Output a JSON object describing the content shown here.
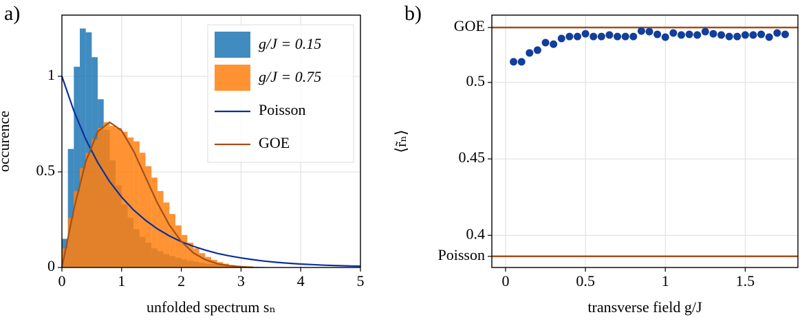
{
  "chart_data": [
    {
      "type": "histogram",
      "panel_label": "a)",
      "xlabel": "unfolded spectrum sₙ",
      "ylabel": "occurence",
      "xlim": [
        0,
        5
      ],
      "ylim": [
        0,
        1.32
      ],
      "xticks": [
        0,
        1,
        2,
        3,
        4,
        5
      ],
      "yticks": [
        0,
        0.5,
        1
      ],
      "grid": true,
      "legend": "upper right",
      "bins": [
        0,
        0.1,
        0.2,
        0.3,
        0.4,
        0.5,
        0.6,
        0.7,
        0.8,
        0.9,
        1.0,
        1.1,
        1.2,
        1.3,
        1.4,
        1.5,
        1.6,
        1.7,
        1.8,
        1.9,
        2.0,
        2.1,
        2.2,
        2.3,
        2.4,
        2.5,
        2.6,
        2.7,
        2.8,
        2.9,
        3.0,
        3.1,
        3.2,
        3.3,
        3.4,
        3.5
      ],
      "series": [
        {
          "name": "g/J = 0.15",
          "color": "#1f77b4",
          "values": [
            0.15,
            0.62,
            1.05,
            1.25,
            1.23,
            1.1,
            0.88,
            0.72,
            0.56,
            0.43,
            0.33,
            0.26,
            0.2,
            0.16,
            0.13,
            0.1,
            0.085,
            0.07,
            0.06,
            0.05,
            0.042,
            0.035,
            0.03,
            0.025,
            0.02,
            0.018,
            0.015,
            0.012,
            0.01,
            0.008,
            0.006,
            0.005,
            0.004,
            0.003,
            0.002
          ]
        },
        {
          "name": "g/J = 0.75",
          "color": "#ff7f0e",
          "values": [
            0.1,
            0.26,
            0.4,
            0.52,
            0.6,
            0.67,
            0.73,
            0.76,
            0.74,
            0.73,
            0.71,
            0.68,
            0.66,
            0.6,
            0.53,
            0.47,
            0.4,
            0.34,
            0.28,
            0.22,
            0.17,
            0.13,
            0.1,
            0.075,
            0.055,
            0.04,
            0.028,
            0.02,
            0.013,
            0.008,
            0.005,
            0.003,
            0.002,
            0.001,
            0.001
          ]
        }
      ],
      "lines": [
        {
          "name": "Poisson",
          "color": "#0a2f9a",
          "x": [
            0,
            0.2,
            0.4,
            0.6,
            0.8,
            1.0,
            1.2,
            1.4,
            1.6,
            1.8,
            2.0,
            2.2,
            2.4,
            2.6,
            2.8,
            3.0,
            3.2,
            3.4,
            3.6,
            3.8,
            4.0,
            4.2,
            4.4,
            4.6,
            4.8,
            5.0
          ],
          "values": [
            1,
            0.819,
            0.67,
            0.549,
            0.449,
            0.368,
            0.301,
            0.247,
            0.202,
            0.165,
            0.135,
            0.111,
            0.091,
            0.074,
            0.061,
            0.05,
            0.041,
            0.033,
            0.027,
            0.022,
            0.018,
            0.015,
            0.012,
            0.01,
            0.008,
            0.007
          ]
        },
        {
          "name": "GOE",
          "color": "#a0501a",
          "x": [
            0,
            0.2,
            0.4,
            0.6,
            0.8,
            1.0,
            1.2,
            1.4,
            1.6,
            1.8,
            2.0,
            2.2,
            2.4,
            2.6,
            2.8,
            3.0,
            3.2
          ],
          "values": [
            0,
            0.304,
            0.554,
            0.711,
            0.76,
            0.716,
            0.609,
            0.473,
            0.337,
            0.222,
            0.136,
            0.077,
            0.041,
            0.02,
            0.009,
            0.004,
            0.001
          ]
        }
      ]
    },
    {
      "type": "scatter",
      "panel_label": "b)",
      "xlabel": "transverse field g/J",
      "ylabel": "⟨r̃ₙ⟩",
      "xlim": [
        -0.086,
        1.83
      ],
      "ylim": [
        0.379,
        0.544
      ],
      "xticks": [
        0,
        0.5,
        1,
        1.5
      ],
      "yticks": [
        {
          "value": 0.3863,
          "label": "Poisson"
        },
        0.4,
        0.45,
        0.5,
        {
          "value": 0.5359,
          "label": "GOE"
        }
      ],
      "grid": true,
      "color": "#123e9c",
      "reference_line_color": "#a0501a",
      "x": [
        0.05,
        0.1,
        0.15,
        0.2,
        0.25,
        0.3,
        0.35,
        0.4,
        0.45,
        0.5,
        0.55,
        0.6,
        0.65,
        0.7,
        0.75,
        0.8,
        0.85,
        0.9,
        0.95,
        1.0,
        1.05,
        1.1,
        1.15,
        1.2,
        1.25,
        1.3,
        1.35,
        1.4,
        1.45,
        1.5,
        1.55,
        1.6,
        1.65,
        1.7,
        1.75
      ],
      "values": [
        0.5135,
        0.5135,
        0.5193,
        0.5211,
        0.526,
        0.525,
        0.5287,
        0.53,
        0.53,
        0.5318,
        0.53,
        0.53,
        0.531,
        0.53,
        0.53,
        0.53,
        0.5336,
        0.5332,
        0.5314,
        0.5296,
        0.5323,
        0.531,
        0.5314,
        0.531,
        0.5332,
        0.5318,
        0.531,
        0.53,
        0.53,
        0.531,
        0.531,
        0.5314,
        0.5296,
        0.5323,
        0.5314
      ]
    }
  ]
}
